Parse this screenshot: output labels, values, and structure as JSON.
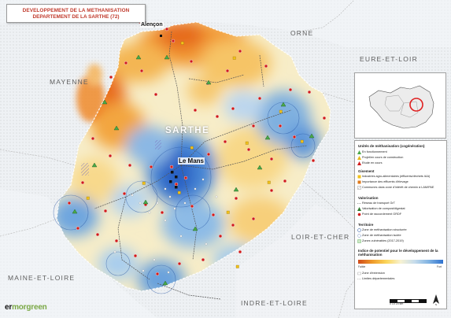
{
  "title": {
    "line1": "DEVELOPPEMENT DE LA METHANISATION",
    "line2": "DEPARTEMENT DE LA SARTHE (72)"
  },
  "regions": {
    "orne": "ORNE",
    "eure_et_loir": "EURE-ET-LOIR",
    "mayenne": "MAYENNE",
    "sarthe": "SARTHE",
    "loir_et_cher": "LOIR-ET-CHER",
    "maine_et_loire": "MAINE-ET-LOIRE",
    "indre_et_loire": "INDRE-ET-LOIRE"
  },
  "cities": {
    "alencon": "Alençon",
    "le_mans": "Le Mans"
  },
  "colors": {
    "low_potential": "#e0661e",
    "mid_potential": "#f7e8b0",
    "high_potential": "#2f72cf",
    "unit_marker": "#d01a1a",
    "plant_marker": "#4aa84a",
    "title_red": "#c0392b",
    "locator_highlight": "#e02020"
  },
  "legend": {
    "units_title": "Unités de méthanisation (cogénération)",
    "units": [
      "En fonctionnement",
      "Projet/en cours de construction",
      "Etude en cours"
    ],
    "gisement_title": "Gisement",
    "gisement": [
      "Industries agro-alimentaires (effluents/déchets IAA)",
      "Importance des effluents d'élevage",
      "Communes dans zone d'intérêt de chemin à LAM/PAE"
    ],
    "valorisation_title": "Valorisation",
    "valorisation": [
      "Réseau de transport GrT",
      "Valorisation de compost/digestat",
      "Point de raccordement GRDF"
    ],
    "territoire_title": "Territoire",
    "territoire": [
      "Zone de méthanisation structurée",
      "Zone de méthanisation isolée",
      "Zones vulnérables (2017-2019)"
    ],
    "index_title": "Indice de potentiel pour le développement de la méthanisation",
    "index_low": "Faible",
    "index_high": "Fort",
    "zone_label": "Zone d'extension",
    "limits_label": "Limites départementales"
  },
  "scale_label": "0 10 20 km",
  "logo": {
    "part1": "er",
    "part2": "morgreen"
  }
}
